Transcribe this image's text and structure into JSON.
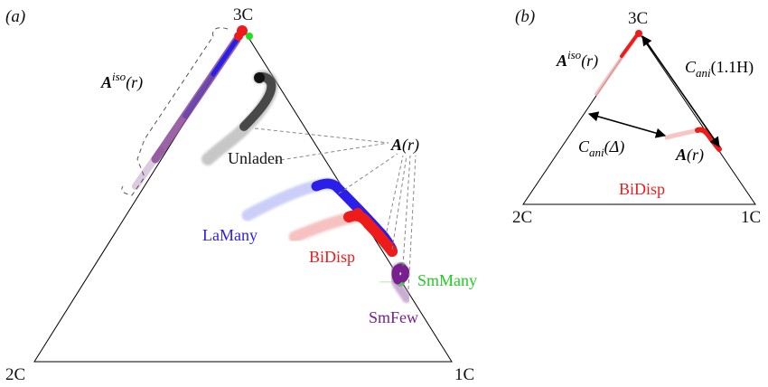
{
  "panel_a": {
    "tag": "(a)",
    "vertices": {
      "top": "3C",
      "left": "2C",
      "right": "1C"
    },
    "labels": {
      "aiso_main": "A",
      "aiso_sup": "iso",
      "aiso_arg": "(r)",
      "a_main": "A",
      "a_arg": "(r)",
      "unladen": "Unladen",
      "lamany": "LaMany",
      "bidisp": "BiDisp",
      "smmany": "SmMany",
      "smfew": "SmFew"
    }
  },
  "panel_b": {
    "tag": "(b)",
    "vertices": {
      "top": "3C",
      "left": "2C",
      "right": "1C"
    },
    "labels": {
      "aiso_main": "A",
      "aiso_sup": "iso",
      "aiso_arg": "(r)",
      "cani_main": "C",
      "cani_sub": "ani",
      "cani_h_arg": "(1.1H)",
      "cani_d_arg": "(Δ)",
      "a_main": "A",
      "a_arg": "(r)",
      "bidisp": "BiDisp"
    }
  },
  "colors": {
    "unladen": "#222222",
    "lamany": "#2a1fe8",
    "bidisp": "#ee1b1b",
    "smmany": "#22dd22",
    "smfew": "#7a1f8f",
    "iso": "#7b2d86"
  }
}
